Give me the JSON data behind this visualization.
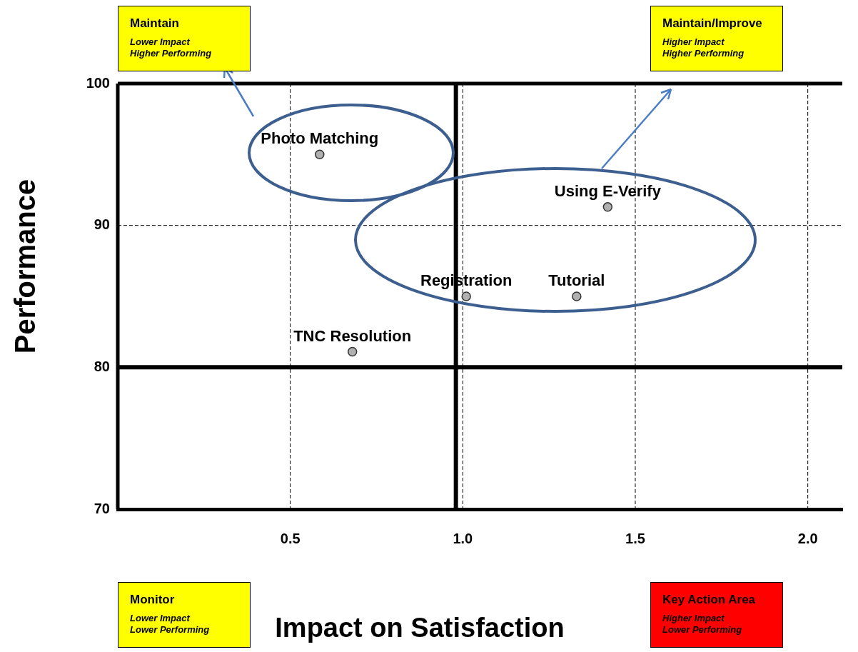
{
  "chart_data": {
    "type": "scatter",
    "xlabel": "Impact on Satisfaction",
    "ylabel": "Performance",
    "series": [
      {
        "name": "Photo Matching",
        "color": "#b0b0b0",
        "x": [
          0.585
        ],
        "values": [
          95.0
        ]
      },
      {
        "name": "Using E-Verify",
        "color": "#b0b0b0",
        "x": [
          1.42
        ],
        "values": [
          91.3
        ]
      },
      {
        "name": "Registration",
        "color": "#b0b0b0",
        "x": [
          1.01
        ],
        "values": [
          85.0
        ]
      },
      {
        "name": "Tutorial",
        "color": "#b0b0b0",
        "x": [
          1.33
        ],
        "values": [
          85.0
        ]
      },
      {
        "name": "TNC Resolution",
        "color": "#b0b0b0",
        "x": [
          0.68
        ],
        "values": [
          81.1
        ]
      }
    ],
    "marker": "circle",
    "xlim": [
      0,
      2.1
    ],
    "xticks": [
      0.5,
      {
        "value": 1,
        "label": "1.0"
      },
      1.5,
      {
        "value": 2,
        "label": "2.0"
      }
    ],
    "ylim": [
      70,
      100
    ],
    "yticks": [
      70,
      80,
      90,
      100
    ],
    "grid": true,
    "legend": false,
    "ref_lines": [
      {
        "axis": "x",
        "value": 0.98,
        "color": "#000000"
      },
      {
        "axis": "y",
        "value": 80,
        "color": "#000000"
      }
    ],
    "annotations": [
      "Maintain",
      "Lower Impact",
      "Higher Performing",
      "Maintain/Improve",
      "Higher Impact",
      "Higher Performing",
      "Monitor",
      "Lower Impact",
      "Lower Performing",
      "Key Action Area",
      "Higher Impact",
      "Lower Performing"
    ]
  }
}
